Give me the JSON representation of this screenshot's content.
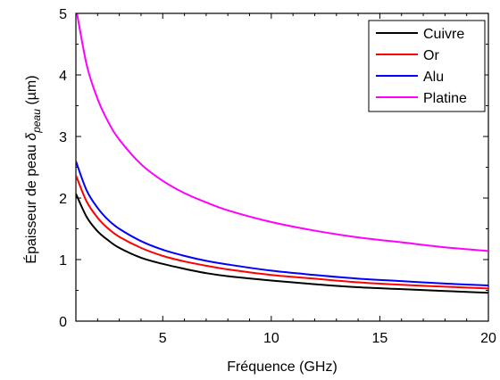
{
  "chart_data": {
    "type": "line",
    "xlabel": "Fréquence (GHz)",
    "ylabel_main": "Épaisseur de peau ",
    "ylabel_symbol": "δ",
    "ylabel_subscript": "peau",
    "ylabel_unit": " (µm)",
    "xlim": [
      1,
      20
    ],
    "ylim": [
      0,
      5
    ],
    "xticks": [
      5,
      10,
      15,
      20
    ],
    "yticks": [
      0,
      1,
      2,
      3,
      4,
      5
    ],
    "grid": false,
    "legend_position": "top-right",
    "x": [
      1,
      1.5,
      2,
      2.5,
      3,
      4,
      5,
      6,
      7,
      8,
      10,
      12,
      14,
      16,
      18,
      20
    ],
    "series": [
      {
        "name": "Cuivre",
        "color": "#000000",
        "values": [
          2.07,
          1.69,
          1.46,
          1.31,
          1.19,
          1.03,
          0.93,
          0.85,
          0.78,
          0.73,
          0.66,
          0.6,
          0.55,
          0.52,
          0.49,
          0.46
        ]
      },
      {
        "name": "Or",
        "color": "#ff0000",
        "values": [
          2.37,
          1.94,
          1.68,
          1.5,
          1.37,
          1.19,
          1.06,
          0.97,
          0.9,
          0.84,
          0.75,
          0.69,
          0.63,
          0.59,
          0.56,
          0.53
        ]
      },
      {
        "name": "Alu",
        "color": "#0000ff",
        "values": [
          2.6,
          2.12,
          1.84,
          1.64,
          1.5,
          1.3,
          1.16,
          1.06,
          0.98,
          0.92,
          0.82,
          0.75,
          0.69,
          0.65,
          0.61,
          0.58
        ]
      },
      {
        "name": "Platine",
        "color": "#ff00ff",
        "values": [
          5.1,
          4.16,
          3.61,
          3.23,
          2.95,
          2.55,
          2.28,
          2.08,
          1.93,
          1.8,
          1.61,
          1.47,
          1.36,
          1.28,
          1.2,
          1.14
        ]
      }
    ]
  }
}
